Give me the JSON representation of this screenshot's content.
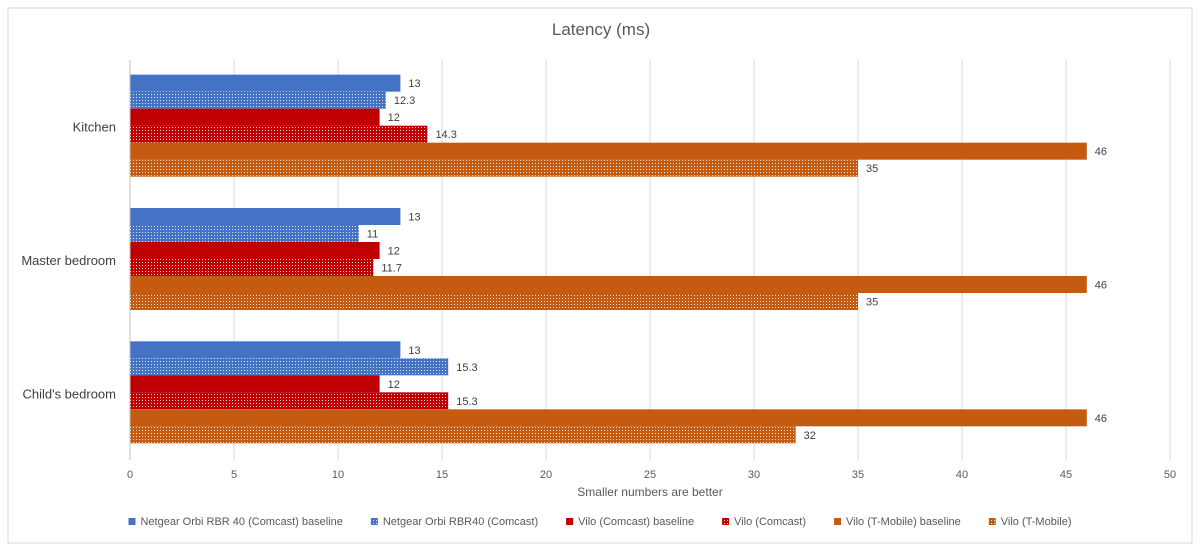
{
  "chart_data": {
    "type": "bar",
    "orientation": "horizontal",
    "title": "Latency (ms)",
    "xlabel": "Smaller numbers are better",
    "ylabel": "",
    "xlim": [
      0,
      50
    ],
    "x_ticks": [
      0,
      5,
      10,
      15,
      20,
      25,
      30,
      35,
      40,
      45,
      50
    ],
    "grid": true,
    "legend_position": "bottom",
    "categories": [
      "Kitchen",
      "Master bedroom",
      "Child's bedroom"
    ],
    "series": [
      {
        "name": "Netgear Orbi RBR 40 (Comcast) baseline",
        "color": "#4472c4",
        "pattern": "solid",
        "values": [
          13,
          13,
          13
        ]
      },
      {
        "name": "Netgear Orbi RBR40 (Comcast)",
        "color": "#4472c4",
        "pattern": "dotted",
        "values": [
          12.3,
          11,
          15.3
        ]
      },
      {
        "name": "Vilo (Comcast) baseline",
        "color": "#c00000",
        "pattern": "solid",
        "values": [
          12,
          12,
          12
        ]
      },
      {
        "name": "Vilo (Comcast)",
        "color": "#c00000",
        "pattern": "dotted",
        "values": [
          14.3,
          11.7,
          15.3
        ]
      },
      {
        "name": "Vilo (T-Mobile) baseline",
        "color": "#c55a11",
        "pattern": "solid",
        "values": [
          46,
          46,
          46
        ]
      },
      {
        "name": "Vilo (T-Mobile)",
        "color": "#c55a11",
        "pattern": "dotted",
        "values": [
          35,
          35,
          32
        ]
      }
    ]
  }
}
